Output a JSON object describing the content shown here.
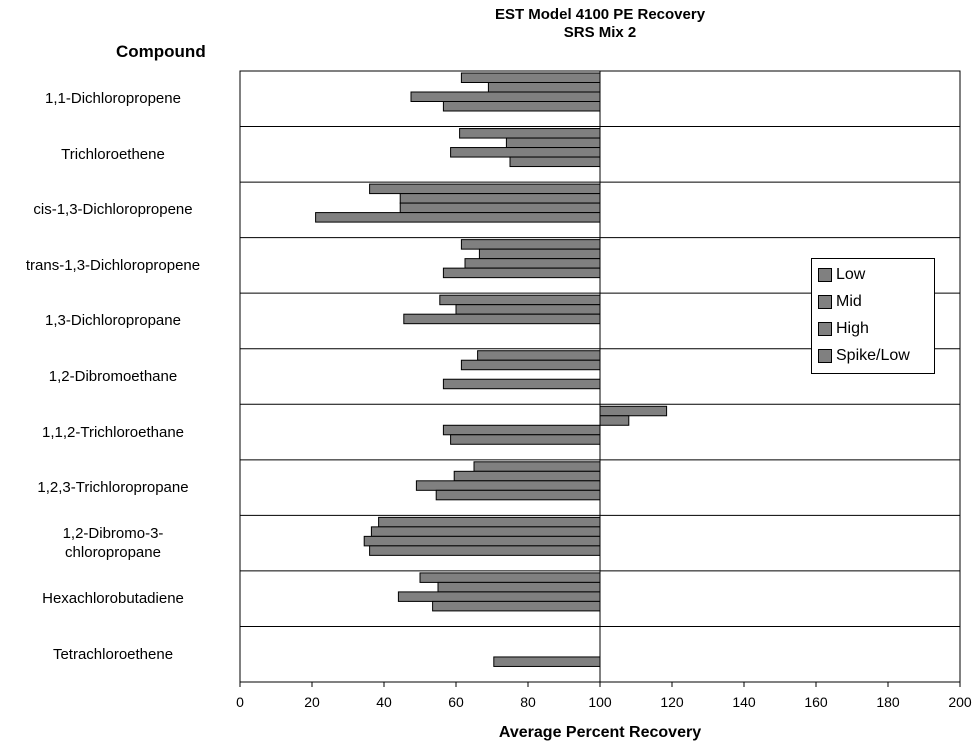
{
  "chart_data": {
    "type": "bar",
    "orientation": "horizontal",
    "title": "EST Model 4100 PE Recovery",
    "subtitle": "SRS Mix 2",
    "category_header": "Compound",
    "xlabel": "Average Percent Recovery",
    "xlim": [
      0,
      200
    ],
    "x_ticks": [
      "0",
      "20",
      "40",
      "60",
      "80",
      "100",
      "120",
      "140",
      "160",
      "180",
      "200"
    ],
    "baseline": 100,
    "grid": false,
    "legend_position": "right",
    "bar_color": "#808080",
    "categories": [
      {
        "label": "1,1-Dichloropropene",
        "label_lines": [
          "1,1-Dichloropropene"
        ]
      },
      {
        "label": "Trichloroethene",
        "label_lines": [
          "Trichloroethene"
        ]
      },
      {
        "label": "cis-1,3-Dichloropropene",
        "label_lines": [
          "cis-1,3-Dichloropropene"
        ]
      },
      {
        "label": "trans-1,3-Dichloropropene",
        "label_lines": [
          "trans-1,3-Dichloropropene"
        ]
      },
      {
        "label": "1,3-Dichloropropane",
        "label_lines": [
          "1,3-Dichloropropane"
        ]
      },
      {
        "label": "1,2-Dibromoethane",
        "label_lines": [
          "1,2-Dibromoethane"
        ]
      },
      {
        "label": "1,1,2-Trichloroethane",
        "label_lines": [
          "1,1,2-Trichloroethane"
        ]
      },
      {
        "label": "1,2,3-Trichloropropane",
        "label_lines": [
          "1,2,3-Trichloropropane"
        ]
      },
      {
        "label": "1,2-Dibromo-3-chloropropane",
        "label_lines": [
          "1,2-Dibromo-3-",
          "chloropropane"
        ]
      },
      {
        "label": "Hexachlorobutadiene",
        "label_lines": [
          "Hexachlorobutadiene"
        ]
      },
      {
        "label": "Tetrachloroethene",
        "label_lines": [
          "Tetrachloroethene"
        ]
      }
    ],
    "series": [
      {
        "name": "Low",
        "values": [
          61.5,
          61,
          36,
          61.5,
          55.5,
          66,
          118.5,
          65,
          38.5,
          50,
          null
        ]
      },
      {
        "name": "Mid",
        "values": [
          69,
          74,
          44.5,
          66.5,
          60,
          61.5,
          108,
          59.5,
          36.5,
          55,
          null
        ]
      },
      {
        "name": "High",
        "values": [
          47.5,
          58.5,
          44.5,
          62.5,
          45.5,
          null,
          56.5,
          49,
          34.5,
          44,
          null
        ]
      },
      {
        "name": "Spike/Low",
        "values": [
          56.5,
          75,
          21,
          56.5,
          null,
          56.5,
          58.5,
          54.5,
          36,
          53.5,
          70.5
        ]
      }
    ]
  }
}
